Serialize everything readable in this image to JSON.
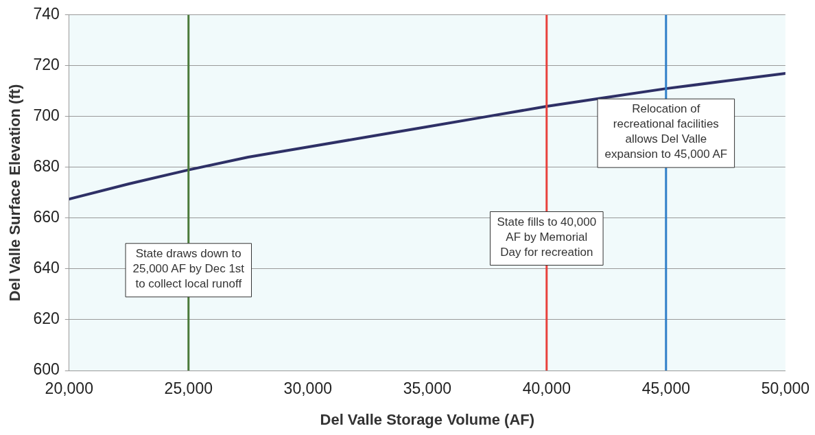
{
  "chart_data": {
    "type": "line",
    "xlabel": "Del Valle Storage Volume (AF)",
    "ylabel": "Del Valle Surface Elevation (ft)",
    "x": [
      20000,
      22500,
      25000,
      27500,
      30000,
      32500,
      35000,
      37500,
      40000,
      42500,
      45000,
      47500,
      50000
    ],
    "series": [
      {
        "color": "#2e3066",
        "values": [
          667.5,
          673.5,
          679,
          684,
          688,
          692,
          696,
          700,
          704,
          707.5,
          711,
          714,
          717
        ]
      }
    ],
    "xlim": [
      20000,
      50000
    ],
    "xticks": [
      {
        "value": 20000,
        "label": "20,000"
      },
      {
        "value": 25000,
        "label": "25,000"
      },
      {
        "value": 30000,
        "label": "30,000"
      },
      {
        "value": 35000,
        "label": "35,000"
      },
      {
        "value": 40000,
        "label": "40,000"
      },
      {
        "value": 45000,
        "label": "45,000"
      },
      {
        "value": 50000,
        "label": "50,000"
      }
    ],
    "ylim": [
      600,
      740
    ],
    "yticks": [
      600,
      620,
      640,
      660,
      680,
      700,
      720,
      740
    ],
    "ref_lines": [
      {
        "axis": "x",
        "value": 25000,
        "label": "State draws down to\n25,000 AF by Dec 1st\nto collect local runoff",
        "color": "#4a7a3a"
      },
      {
        "axis": "x",
        "value": 40000,
        "label": "State fills to 40,000\nAF by Memorial\nDay for recreation",
        "color": "#e8413c"
      },
      {
        "axis": "x",
        "value": 45000,
        "label": "Relocation of\nrecreational facilities\nallows Del Valle\nexpansion to 45,000 AF",
        "color": "#2f7fc8"
      }
    ],
    "grid": "y",
    "legend": false,
    "marker": "none",
    "line_style": "solid"
  }
}
